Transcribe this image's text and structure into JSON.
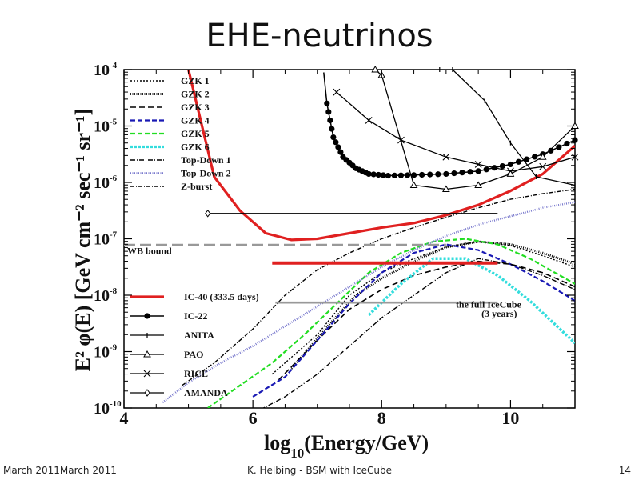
{
  "slide": {
    "title": "EHE-neutrinos",
    "footer_left": "March 2011March 2011",
    "footer_center": "K. Helbing - BSM with IceCube",
    "footer_right": "14"
  },
  "chart_data": {
    "type": "line",
    "xlabel": "log",
    "xlabel_sub": "10",
    "xlabel_rest": "(Energy/GeV)",
    "ylabel": "E² φ(E) [GeV cm⁻² sec⁻¹ sr⁻¹]",
    "xlim": [
      4,
      11
    ],
    "ylim_log10": [
      -10,
      -4
    ],
    "x_ticks": [
      4,
      6,
      8,
      10
    ],
    "y_ticks": [
      -10,
      -9,
      -8,
      -7,
      -6,
      -5,
      -4
    ],
    "y_tick_base": "10",
    "annotations": [
      {
        "text": "WB bound",
        "x": 4.05,
        "y": -7.27
      },
      {
        "text": "the full IceCube",
        "x": 9.15,
        "y": -8.22
      },
      {
        "text": "(3 years)",
        "x": 9.55,
        "y": -8.38
      }
    ],
    "series": [
      {
        "name": "GZK 1",
        "color": "#000000",
        "dash": "2,2",
        "width": 1.4,
        "legend": 1,
        "points": [
          [
            6.3,
            -9.4
          ],
          [
            7.0,
            -8.7
          ],
          [
            7.5,
            -8.0
          ],
          [
            8.0,
            -7.6
          ],
          [
            8.5,
            -7.35
          ],
          [
            9.0,
            -7.15
          ],
          [
            9.5,
            -7.05
          ],
          [
            10.0,
            -7.12
          ],
          [
            10.5,
            -7.3
          ],
          [
            11.0,
            -7.5
          ]
        ]
      },
      {
        "name": "GZK 2",
        "color": "#000000",
        "dash": "1,1.5",
        "width": 2.8,
        "legend": 2,
        "points": [
          [
            6.6,
            -9.3
          ],
          [
            7.2,
            -8.5
          ],
          [
            7.6,
            -8.0
          ],
          [
            8.0,
            -7.7
          ],
          [
            8.5,
            -7.4
          ],
          [
            9.0,
            -7.15
          ],
          [
            9.5,
            -7.05
          ],
          [
            10.0,
            -7.1
          ],
          [
            10.5,
            -7.25
          ],
          [
            11.0,
            -7.45
          ]
        ]
      },
      {
        "name": "GZK 3",
        "color": "#000000",
        "dash": "7,4",
        "width": 1.6,
        "legend": 3,
        "points": [
          [
            6.4,
            -9.5
          ],
          [
            7.0,
            -8.8
          ],
          [
            7.5,
            -8.25
          ],
          [
            8.0,
            -7.9
          ],
          [
            8.5,
            -7.65
          ],
          [
            9.0,
            -7.5
          ],
          [
            9.5,
            -7.4
          ],
          [
            10.0,
            -7.45
          ],
          [
            10.5,
            -7.6
          ],
          [
            11.0,
            -7.85
          ]
        ]
      },
      {
        "name": "GZK 4",
        "color": "#1919b4",
        "dash": "6,3",
        "width": 2.2,
        "legend": 4,
        "points": [
          [
            6.0,
            -9.8
          ],
          [
            6.5,
            -9.45
          ],
          [
            7.0,
            -8.8
          ],
          [
            7.5,
            -8.15
          ],
          [
            8.0,
            -7.6
          ],
          [
            8.5,
            -7.25
          ],
          [
            9.0,
            -7.1
          ],
          [
            9.5,
            -7.2
          ],
          [
            10.0,
            -7.45
          ],
          [
            10.5,
            -7.75
          ],
          [
            11.0,
            -8.1
          ]
        ]
      },
      {
        "name": "GZK 5",
        "color": "#22dd22",
        "dash": "6,3",
        "width": 2.2,
        "legend": 5,
        "points": [
          [
            5.3,
            -10.0
          ],
          [
            5.8,
            -9.6
          ],
          [
            6.3,
            -9.2
          ],
          [
            6.8,
            -8.7
          ],
          [
            7.3,
            -8.15
          ],
          [
            7.8,
            -7.6
          ],
          [
            8.3,
            -7.25
          ],
          [
            8.8,
            -7.05
          ],
          [
            9.3,
            -7.0
          ],
          [
            9.8,
            -7.1
          ],
          [
            10.3,
            -7.35
          ],
          [
            11.0,
            -7.8
          ]
        ]
      },
      {
        "name": "GZK 6",
        "color": "#33dddd",
        "dash": "3,2",
        "width": 3.5,
        "legend": 6,
        "points": [
          [
            7.8,
            -8.35
          ],
          [
            8.3,
            -7.8
          ],
          [
            8.8,
            -7.35
          ],
          [
            9.3,
            -7.35
          ],
          [
            9.8,
            -7.65
          ],
          [
            10.3,
            -8.1
          ],
          [
            11.0,
            -8.85
          ]
        ]
      },
      {
        "name": "Top-Down 1",
        "color": "#000000",
        "dash": "6,2,1,2",
        "width": 1.4,
        "legend": 7,
        "points": [
          [
            6.0,
            -10.1
          ],
          [
            6.5,
            -9.8
          ],
          [
            7.0,
            -9.4
          ],
          [
            7.5,
            -8.9
          ],
          [
            8.0,
            -8.4
          ],
          [
            8.5,
            -8.0
          ],
          [
            9.0,
            -7.6
          ],
          [
            9.5,
            -7.35
          ],
          [
            10.0,
            -7.45
          ],
          [
            10.5,
            -7.65
          ],
          [
            11.0,
            -7.9
          ]
        ]
      },
      {
        "name": "Top-Down 2",
        "color": "#7777cc",
        "dash": "1,1.5",
        "width": 2.4,
        "legend": 8,
        "points": [
          [
            4.6,
            -9.9
          ],
          [
            5.0,
            -9.55
          ],
          [
            5.5,
            -9.2
          ],
          [
            6.0,
            -8.9
          ],
          [
            6.5,
            -8.55
          ],
          [
            7.0,
            -8.2
          ],
          [
            7.5,
            -7.85
          ],
          [
            8.0,
            -7.5
          ],
          [
            8.5,
            -7.2
          ],
          [
            9.0,
            -6.95
          ],
          [
            9.5,
            -6.75
          ],
          [
            10.0,
            -6.6
          ],
          [
            10.5,
            -6.45
          ],
          [
            11.0,
            -6.35
          ]
        ]
      },
      {
        "name": "Z-burst",
        "color": "#000000",
        "dash": "5,2,1,2",
        "width": 1.4,
        "legend": 9,
        "points": [
          [
            4.9,
            -9.6
          ],
          [
            5.4,
            -9.2
          ],
          [
            6.0,
            -8.6
          ],
          [
            6.5,
            -8.0
          ],
          [
            7.0,
            -7.55
          ],
          [
            7.5,
            -7.25
          ],
          [
            8.0,
            -7.0
          ],
          [
            8.5,
            -6.8
          ],
          [
            9.0,
            -6.62
          ],
          [
            9.5,
            -6.45
          ],
          [
            10.0,
            -6.3
          ],
          [
            10.5,
            -6.2
          ],
          [
            11.0,
            -6.12
          ]
        ]
      },
      {
        "name": "WB bound",
        "color": "#999999",
        "dash": "14,6",
        "width": 3.2,
        "legend": 0,
        "points": [
          [
            4.0,
            -7.11
          ],
          [
            9.0,
            -7.11
          ]
        ]
      },
      {
        "name": "the full IceCube (3 years)",
        "color": "#999999",
        "dash": "",
        "width": 2.6,
        "legend": 0,
        "points": [
          [
            6.35,
            -8.13
          ],
          [
            9.8,
            -8.13
          ]
        ]
      },
      {
        "name": "IC-40 (333.5 days)",
        "color": "#e02020",
        "dash": "",
        "width": 3.2,
        "legend": 10,
        "points": [
          [
            5.0,
            -4.0
          ],
          [
            5.4,
            -5.9
          ],
          [
            5.8,
            -6.5
          ],
          [
            6.2,
            -6.9
          ],
          [
            6.6,
            -7.02
          ],
          [
            7.0,
            -7.0
          ],
          [
            7.5,
            -6.9
          ],
          [
            8.0,
            -6.8
          ],
          [
            8.5,
            -6.72
          ],
          [
            9.0,
            -6.58
          ],
          [
            9.5,
            -6.4
          ],
          [
            10.0,
            -6.15
          ],
          [
            10.5,
            -5.85
          ],
          [
            11.0,
            -5.35
          ]
        ]
      },
      {
        "name": "IC-40 segment",
        "color": "#e02020",
        "dash": "",
        "width": 4.0,
        "legend": 0,
        "points": [
          [
            6.3,
            -7.43
          ],
          [
            9.8,
            -7.43
          ]
        ]
      },
      {
        "name": "IC-22",
        "color": "#000000",
        "dash": "",
        "width": 1.5,
        "legend": 11,
        "marker": "dot",
        "points": [
          [
            7.1,
            -4.05
          ],
          [
            7.15,
            -4.6
          ],
          [
            7.25,
            -5.2
          ],
          [
            7.4,
            -5.55
          ],
          [
            7.6,
            -5.75
          ],
          [
            7.8,
            -5.85
          ],
          [
            8.1,
            -5.88
          ],
          [
            8.5,
            -5.87
          ],
          [
            9.0,
            -5.85
          ],
          [
            9.5,
            -5.8
          ],
          [
            10.0,
            -5.68
          ],
          [
            10.5,
            -5.5
          ],
          [
            11.0,
            -5.25
          ]
        ]
      },
      {
        "name": "ANITA",
        "color": "#000000",
        "dash": "",
        "width": 1.3,
        "legend": 12,
        "marker": "tick",
        "points": [
          [
            8.9,
            -4.0
          ],
          [
            9.1,
            -4.0
          ],
          [
            9.6,
            -4.55
          ],
          [
            10.0,
            -5.3
          ],
          [
            10.4,
            -5.9
          ],
          [
            11.0,
            -6.05
          ]
        ]
      },
      {
        "name": "PAO",
        "color": "#000000",
        "dash": "",
        "width": 1.3,
        "legend": 13,
        "marker": "tri",
        "points": [
          [
            7.9,
            -4.0
          ],
          [
            8.0,
            -4.1
          ],
          [
            8.5,
            -6.05
          ],
          [
            9.0,
            -6.12
          ],
          [
            9.5,
            -6.05
          ],
          [
            10.0,
            -5.85
          ],
          [
            10.5,
            -5.55
          ],
          [
            11.0,
            -5.0
          ]
        ]
      },
      {
        "name": "RICE",
        "color": "#000000",
        "dash": "",
        "width": 1.3,
        "legend": 14,
        "marker": "x",
        "points": [
          [
            7.3,
            -4.4
          ],
          [
            7.8,
            -4.9
          ],
          [
            8.3,
            -5.25
          ],
          [
            9.0,
            -5.55
          ],
          [
            9.5,
            -5.68
          ],
          [
            10.0,
            -5.8
          ],
          [
            10.5,
            -5.72
          ],
          [
            11.0,
            -5.55
          ]
        ]
      },
      {
        "name": "AMANDA",
        "color": "#000000",
        "dash": "",
        "width": 1.3,
        "legend": 15,
        "marker": "diamond",
        "points": [
          [
            5.3,
            -6.55
          ],
          [
            9.8,
            -6.55
          ]
        ]
      }
    ]
  }
}
